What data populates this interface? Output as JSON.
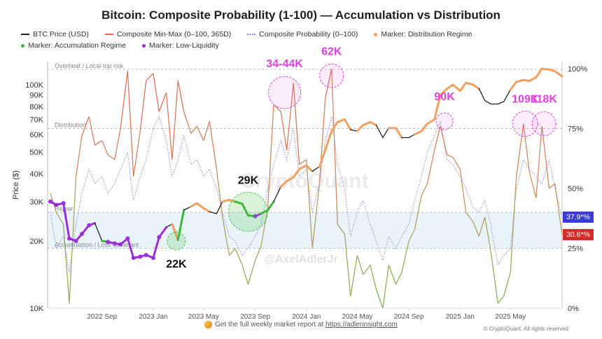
{
  "chart_data": {
    "type": "line",
    "title": "Bitcoin: Composite Probability (1-100) — Accumulation vs Distribution",
    "legend": [
      {
        "label": "BTC Price (USD)",
        "color": "#222222",
        "style": "solid"
      },
      {
        "label": "Composite Min-Max (0–100, 365D)",
        "color": "#e0695a",
        "style": "solid"
      },
      {
        "label": "Composite Probability (0–100)",
        "color": "#8e8ee0",
        "style": "dotted"
      },
      {
        "label": "Marker: Distribution Regime",
        "color": "#f0a060",
        "style": "marker"
      },
      {
        "label": "Marker: Accumulation Regime",
        "color": "#3cb43c",
        "style": "marker"
      },
      {
        "label": "Marker: Low-Liquidity",
        "color": "#9b30d9",
        "style": "marker"
      }
    ],
    "legend_placement": "top",
    "ylabel_left": "Price ($)",
    "y_left_scale": "log",
    "y_left_range": [
      10000,
      125000
    ],
    "y_left_ticks": [
      "10K",
      "20K",
      "30K",
      "40K",
      "50K",
      "60K",
      "70K",
      "80K",
      "90K",
      "100K"
    ],
    "y_left_tick_values": [
      10000,
      20000,
      30000,
      40000,
      50000,
      60000,
      70000,
      80000,
      90000,
      100000
    ],
    "y_right_range": [
      0,
      100
    ],
    "y_right_ticks": [
      "0%",
      "25%",
      "50%",
      "75%",
      "100%"
    ],
    "y_right_tick_values": [
      0,
      25,
      50,
      75,
      100
    ],
    "x_range": [
      "2022-05-01",
      "2025-09-01"
    ],
    "x_ticks": [
      "2022 Sep",
      "2023 Jan",
      "2023 May",
      "2023 Sep",
      "2024 Jan",
      "2024 May",
      "2024 Sep",
      "2025 Jan",
      "2025 May"
    ],
    "x_tick_dates": [
      "2022-09-01",
      "2023-01-01",
      "2023-05-01",
      "2023-09-01",
      "2024-01-01",
      "2024-05-01",
      "2024-09-01",
      "2025-01-01",
      "2025-05-01"
    ],
    "grid": false,
    "dates": [
      "2022-05-01",
      "2022-05-15",
      "2022-06-01",
      "2022-06-15",
      "2022-07-01",
      "2022-07-15",
      "2022-08-01",
      "2022-08-15",
      "2022-09-01",
      "2022-09-15",
      "2022-10-01",
      "2022-10-15",
      "2022-11-01",
      "2022-11-15",
      "2022-12-01",
      "2022-12-15",
      "2023-01-01",
      "2023-01-15",
      "2023-02-01",
      "2023-02-15",
      "2023-03-01",
      "2023-03-15",
      "2023-04-01",
      "2023-04-15",
      "2023-05-01",
      "2023-05-15",
      "2023-06-01",
      "2023-06-15",
      "2023-07-01",
      "2023-07-15",
      "2023-08-01",
      "2023-08-15",
      "2023-09-01",
      "2023-09-15",
      "2023-10-01",
      "2023-10-15",
      "2023-11-01",
      "2023-11-15",
      "2023-12-01",
      "2023-12-15",
      "2024-01-01",
      "2024-01-15",
      "2024-02-01",
      "2024-02-15",
      "2024-03-01",
      "2024-03-15",
      "2024-04-01",
      "2024-04-15",
      "2024-05-01",
      "2024-05-15",
      "2024-06-01",
      "2024-06-15",
      "2024-07-01",
      "2024-07-15",
      "2024-08-01",
      "2024-08-15",
      "2024-09-01",
      "2024-09-15",
      "2024-10-01",
      "2024-10-15",
      "2024-11-01",
      "2024-11-15",
      "2024-12-01",
      "2024-12-15",
      "2025-01-01",
      "2025-01-15",
      "2025-02-01",
      "2025-02-15",
      "2025-03-01",
      "2025-03-15",
      "2025-04-01",
      "2025-04-15",
      "2025-05-01",
      "2025-05-15",
      "2025-06-01",
      "2025-06-15",
      "2025-07-01",
      "2025-07-15",
      "2025-08-01",
      "2025-08-15",
      "2025-09-01"
    ],
    "series": [
      {
        "name": "BTC Price (USD)",
        "axis": "left",
        "values": [
          30000,
          29000,
          29500,
          20500,
          20000,
          21500,
          23500,
          24000,
          20000,
          19800,
          19500,
          19300,
          20500,
          16800,
          17000,
          17300,
          16800,
          20800,
          23000,
          23800,
          20200,
          27500,
          28500,
          29500,
          28000,
          27000,
          26500,
          30000,
          30500,
          30000,
          29300,
          26000,
          25800,
          26500,
          27500,
          30000,
          35000,
          37000,
          38500,
          42000,
          43500,
          41000,
          43000,
          51000,
          62000,
          68000,
          70000,
          63000,
          62000,
          66000,
          68000,
          66000,
          58000,
          64000,
          64000,
          58000,
          58000,
          60000,
          62000,
          67000,
          70000,
          90000,
          96000,
          100000,
          94000,
          102000,
          100000,
          96000,
          85000,
          82000,
          82000,
          84000,
          95000,
          103000,
          105000,
          104000,
          108000,
          118000,
          117000,
          115000,
          109000
        ],
        "regime": [
          "L",
          "L",
          "L",
          "L",
          "L",
          "L",
          "L",
          "N",
          "A",
          "L",
          "L",
          "L",
          "L",
          "L",
          "L",
          "L",
          "L",
          "L",
          "N",
          "D",
          "A",
          "N",
          "D",
          "D",
          "D",
          "N",
          "N",
          "D",
          "D",
          "A",
          "A",
          "A",
          "L",
          "A",
          "A",
          "N",
          "D",
          "D",
          "D",
          "D",
          "D",
          "N",
          "D",
          "D",
          "D",
          "D",
          "D",
          "N",
          "D",
          "D",
          "D",
          "N",
          "N",
          "D",
          "D",
          "N",
          "N",
          "D",
          "D",
          "D",
          "D",
          "D",
          "D",
          "D",
          "D",
          "D",
          "D",
          "N",
          "N",
          "N",
          "N",
          "N",
          "D",
          "D",
          "D",
          "D",
          "D",
          "D",
          "D",
          "D",
          "D"
        ]
      },
      {
        "name": "Composite Min-Max (0–100, 365D)",
        "axis": "right",
        "values": [
          48,
          40,
          35,
          2,
          55,
          72,
          80,
          68,
          70,
          64,
          62,
          75,
          99,
          55,
          74,
          95,
          98,
          82,
          90,
          62,
          95,
          82,
          73,
          76,
          70,
          78,
          58,
          38,
          22,
          25,
          18,
          10,
          20,
          26,
          42,
          85,
          82,
          66,
          94,
          60,
          62,
          25,
          52,
          88,
          100,
          35,
          31,
          5,
          22,
          14,
          18,
          8,
          0,
          18,
          10,
          15,
          28,
          33,
          47,
          52,
          66,
          76,
          64,
          63,
          58,
          40,
          36,
          30,
          38,
          24,
          2,
          5,
          15,
          55,
          77,
          57,
          46,
          76,
          50,
          52,
          30.6
        ]
      },
      {
        "name": "Composite Probability (0–100)",
        "axis": "right",
        "values": [
          40,
          25,
          30,
          15,
          35,
          48,
          58,
          52,
          55,
          48,
          52,
          58,
          65,
          45,
          55,
          62,
          75,
          80,
          70,
          55,
          62,
          72,
          60,
          62,
          55,
          58,
          50,
          40,
          30,
          28,
          22,
          25,
          30,
          35,
          50,
          60,
          70,
          62,
          75,
          55,
          58,
          40,
          52,
          70,
          80,
          60,
          50,
          30,
          40,
          45,
          35,
          28,
          20,
          30,
          25,
          30,
          35,
          45,
          55,
          65,
          72,
          78,
          62,
          60,
          55,
          50,
          42,
          40,
          45,
          35,
          18,
          22,
          25,
          50,
          62,
          58,
          55,
          52,
          62,
          50,
          37.9
        ]
      }
    ],
    "reference_lines": [
      {
        "label": "Overheat / Local-top risk",
        "value": 100
      },
      {
        "label": "Distribution",
        "value": 75
      },
      {
        "label": "Repair",
        "value": 40
      },
      {
        "label": "Accumulation / Loss dominant",
        "value": 25
      }
    ],
    "annotations": [
      {
        "text": "22K",
        "date": "2023-02-25",
        "price": 20000,
        "color": "#111111",
        "circle": "#4cc44c"
      },
      {
        "text": "29K",
        "date": "2023-08-15",
        "price": 27000,
        "color": "#111111",
        "circle": "#4cc44c"
      },
      {
        "text": "34-44K",
        "date": "2023-11-10",
        "percent": 90,
        "color": "#e040e0",
        "circle": "#e040e0"
      },
      {
        "text": "62K",
        "date": "2024-03-01",
        "percent": 97,
        "color": "#e040e0",
        "circle": "#e040e0"
      },
      {
        "text": "90K",
        "date": "2024-11-25",
        "percent": 78,
        "color": "#e040e0",
        "circle": "#e040e0"
      },
      {
        "text": "109K",
        "date": "2025-06-05",
        "percent": 77,
        "color": "#e040e0",
        "circle": "#e040e0"
      },
      {
        "text": "118K",
        "date": "2025-07-20",
        "percent": 77,
        "color": "#e040e0",
        "circle": "#e040e0"
      }
    ],
    "last_values": [
      {
        "text": "37.9*%",
        "value": 37.9,
        "color": "#3b3bdc"
      },
      {
        "text": "30.6*%",
        "value": 30.6,
        "color": "#d62b2b"
      }
    ]
  },
  "watermarks": {
    "brand": "CryptoQuant",
    "author": "@AxelAdlerJr"
  },
  "footer": {
    "text": "Get the full weekly market report at",
    "link": "https://adlerinsight.com",
    "copyright": "© CryptoQuant. All rights reserved"
  }
}
